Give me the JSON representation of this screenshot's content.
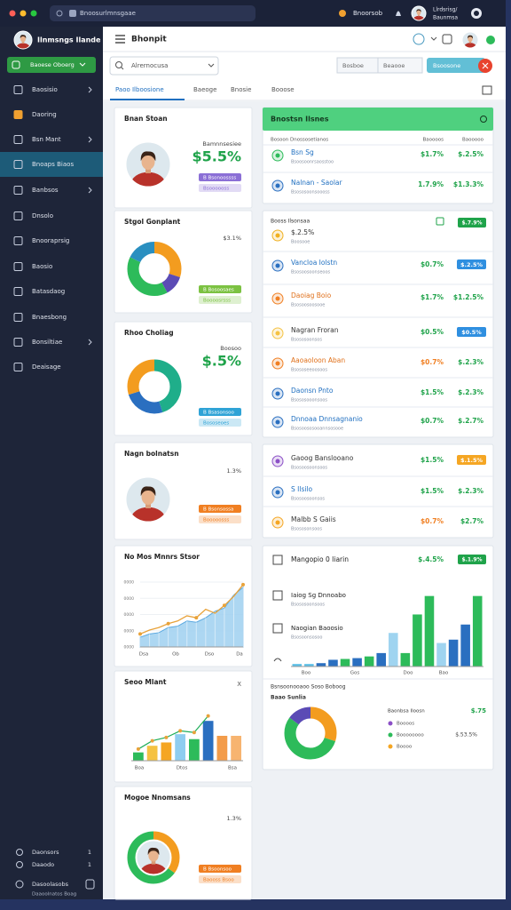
{
  "browser": {
    "url": "Bnoosurlmnsgaae",
    "account": "Bnoorsob",
    "user": [
      "Llrdsrisg/",
      "Baunmsa"
    ]
  },
  "sidebar": {
    "profile": "Ilnmsngs Ilande",
    "button": "Baoese Oboerg",
    "items": [
      {
        "label": "Baosisio",
        "arrow": true
      },
      {
        "label": "Daoring",
        "color": "#f0a030"
      },
      {
        "label": "Bsn Mant",
        "arrow": true
      },
      {
        "label": "Bnoaps Biaos",
        "active": true
      },
      {
        "label": "Banbsos",
        "arrow": true
      },
      {
        "label": "Dnsolo"
      },
      {
        "label": "Bnooraprsig"
      },
      {
        "label": "Baosio"
      },
      {
        "label": "Batasdaog"
      },
      {
        "label": "Bnaesbong"
      },
      {
        "label": "Bonsiltiae",
        "arrow": true
      },
      {
        "label": "Deaisage"
      }
    ],
    "footer": [
      {
        "label": "Daonsors",
        "count": "1"
      },
      {
        "label": "Daaodo",
        "count": "1"
      }
    ],
    "account": {
      "name": "Dasoolasobs",
      "sub": "Daaoolnatos Boag"
    }
  },
  "header": {
    "title": "Bhonpit",
    "search": "Alrernocusa",
    "filters": [
      "Bosboe",
      "Beaooe"
    ],
    "action": "Bsoosone",
    "tabs": [
      "Paoo Ilboosione",
      "Baeoge",
      "Bnosie",
      "Booose"
    ]
  },
  "left_cards": [
    {
      "kind": "profile",
      "title": "Bnan Stoan",
      "label": "Bamnnsesiee",
      "value": "$5.5%",
      "value_color": "#1fa34a",
      "pill": "B Bsonoossss",
      "pill_color": "#8b6fd6",
      "pill2": "Bsoooooss"
    },
    {
      "kind": "donut",
      "title": "Stgol Gonplant",
      "label": "$3.1%",
      "pill": "B Bosoosaes",
      "pill_color": "#7cc242",
      "pill2": "Boooosrsss",
      "segments": [
        {
          "value": 30,
          "color": "#f39c1f"
        },
        {
          "value": 12,
          "color": "#5b4bb5"
        },
        {
          "value": 40,
          "color": "#2dbb5a"
        },
        {
          "value": 18,
          "color": "#2a8fc0"
        }
      ]
    },
    {
      "kind": "donut",
      "title": "Rhoo Choliag",
      "label": "Boosoo",
      "value": "$.5%",
      "value_color": "#1fa34a",
      "pill": "B Bsasonsoo",
      "pill_color": "#2fa3d6",
      "pill2": "Bososeoes",
      "segments": [
        {
          "value": 45,
          "color": "#1fae8a"
        },
        {
          "value": 25,
          "color": "#2a6fc0"
        },
        {
          "value": 30,
          "color": "#f39c1f"
        }
      ]
    },
    {
      "kind": "profile",
      "title": "Nagn bolnatsn",
      "label": "1.3%",
      "pill": "B Bsonsossa",
      "pill_color": "#f07f22",
      "pill2": "Booooosss"
    },
    {
      "kind": "area",
      "title": "No Mos Mnnrs Stsor",
      "ylabels": [
        "0000",
        "0000",
        "0000",
        "0000",
        "0000"
      ],
      "xlabels": [
        "Dsa",
        "Ob",
        "Dso",
        "Da"
      ],
      "ylim": [
        0,
        100
      ],
      "values": [
        15,
        20,
        22,
        30,
        32,
        40,
        38,
        45,
        55,
        60,
        80,
        92
      ],
      "line": [
        20,
        26,
        30,
        36,
        40,
        48,
        45,
        58,
        52,
        64,
        78,
        96
      ]
    },
    {
      "kind": "bars",
      "title": "Seoo Mlant",
      "close": "X",
      "xlabels": [
        "Boa",
        "Dtos",
        "Bsa"
      ],
      "ylim": [
        0,
        60
      ],
      "bars": [
        {
          "value": 10,
          "color": "#2dbb5a"
        },
        {
          "value": 18,
          "color": "#f5c242"
        },
        {
          "value": 22,
          "color": "#f5a623"
        },
        {
          "value": 32,
          "color": "#8fcdf0"
        },
        {
          "value": 26,
          "color": "#2dbb5a"
        },
        {
          "value": 48,
          "color": "#2a6fc0"
        },
        {
          "value": 30,
          "color": "#f39c4a"
        },
        {
          "value": 30,
          "color": "#f7b470"
        }
      ],
      "line": [
        14,
        24,
        28,
        36,
        34,
        54,
        null,
        null
      ]
    },
    {
      "kind": "donut_profile",
      "title": "Mogoe Nnomsans",
      "label": "1.3%",
      "pill": "B Bsoonsoo",
      "pill_color": "#f07f22",
      "pill2": "Baooss Bsoo",
      "segments": [
        {
          "value": 35,
          "color": "#f39c1f"
        },
        {
          "value": 65,
          "color": "#2dbb5a"
        }
      ]
    }
  ],
  "summary": {
    "title": "Bnostsn Ilsnes",
    "columns": [
      "Bosoon Dnossosetianos",
      "Baoooos",
      "Baooooo"
    ],
    "rows": [
      {
        "title": "Bsn Sg",
        "sub": "Bsoosoonrsaosstoo",
        "v1": "$1.7%",
        "v2": "$.2.5%",
        "icon": "#2dbb5a",
        "title_color": "#1f6fc0"
      },
      {
        "title": "Nalnan - Saolar",
        "sub": "Bsososoonsoooss",
        "v1": "1.7.9%",
        "v2": "$1.3.3%",
        "icon": "#2a6fc0",
        "title_color": "#1f6fc0"
      }
    ]
  },
  "list": {
    "title": "Booss Ilsonsaa",
    "pill": "$.7.9%",
    "pill_color": "#1fa34a",
    "rows": [
      {
        "title": "$.2.5%",
        "sub": "Boosooe",
        "icon": "#f0b020",
        "title_color": "#333333"
      },
      {
        "title": "Vancloa Iolstn",
        "sub": "Bsosoosoonseoos",
        "v1": "$0.7%",
        "v2": "$.2.5%",
        "v2_pill": "#2f8fe0",
        "icon": "#2a6fc0",
        "title_color": "#1f6fc0"
      },
      {
        "title": "Daoiag Boio",
        "sub": "Bsosoosoosooe",
        "v1": "$1.7%",
        "v2": "$1.2.5%",
        "icon": "#f07f22",
        "title_color": "#e0701a"
      },
      {
        "title": "Nagran Froran",
        "sub": "Bsososoonsos",
        "v1": "$0.5%",
        "v2": "$0.5%",
        "v2_pill": "#2f8fe0",
        "icon": "#f5c242",
        "title_color": "#333333"
      },
      {
        "title": "Aaoaoloon Aban",
        "sub": "Bsososeeoosoos",
        "v1": "$0.7%",
        "v1_color": "#f07f22",
        "v2": "$.2.3%",
        "icon": "#f07f22",
        "title_color": "#e0701a"
      },
      {
        "title": "Daonsn Pnto",
        "sub": "Bsososooonsoos",
        "v1": "$1.5%",
        "v2": "$.2.3%",
        "icon": "#2a6fc0",
        "title_color": "#1f6fc0"
      },
      {
        "title": "Dnnoaa Dnnsagnanio",
        "sub": "Bsosoososooannsosooe",
        "v1": "$0.7%",
        "v2": "$.2.7%",
        "icon": "#2a6fc0",
        "title_color": "#1f6fc0"
      }
    ]
  },
  "list2": {
    "rows": [
      {
        "title": "Gaoog Banslooano",
        "sub": "Bsosoosoonsoos",
        "v1": "$1.5%",
        "v2": "$.1.5%",
        "v2_pill": "#f5a623",
        "icon": "#8b4fc6",
        "title_color": "#333333"
      },
      {
        "title": "S Ilsilo",
        "sub": "Bsosoosoonsos",
        "v1": "$1.5%",
        "v2": "$.2.3%",
        "icon": "#2a6fc0",
        "title_color": "#1f6fc0"
      },
      {
        "title": "Malbb S Gaiis",
        "sub": "Bsososonsoos",
        "v1": "$0.7%",
        "v1_color": "#f07f22",
        "v2": "$2.7%",
        "icon": "#f5a623",
        "title_color": "#333333"
      }
    ]
  },
  "chart_card": {
    "title": "Mangopio 0 Iiarin",
    "value": "$.4.5%",
    "pill": "$.1.9%",
    "pill_color": "#1fa34a",
    "items": [
      {
        "title": "Iaiog Sg Dnnoabo",
        "sub": "Bsososoonsoos"
      },
      {
        "title": "Naogian Baoosio",
        "sub": "Bsosoonsosoo"
      }
    ],
    "xlabels": [
      "Boo",
      "Gos",
      "Doo",
      "Bao"
    ],
    "ylim": [
      0,
      90
    ],
    "bars": [
      {
        "value": 3,
        "color": "#5bc0e8"
      },
      {
        "value": 3,
        "color": "#5bc0e8"
      },
      {
        "value": 4,
        "color": "#2a6fc0"
      },
      {
        "value": 8,
        "color": "#2a6fc0"
      },
      {
        "value": 9,
        "color": "#2dbb5a"
      },
      {
        "value": 10,
        "color": "#2a6fc0"
      },
      {
        "value": 12,
        "color": "#2dbb5a"
      },
      {
        "value": 16,
        "color": "#2a6fc0"
      },
      {
        "value": 40,
        "color": "#9fd4f0"
      },
      {
        "value": 16,
        "color": "#2dbb5a"
      },
      {
        "value": 62,
        "color": "#2dbb5a"
      },
      {
        "value": 84,
        "color": "#2dbb5a"
      },
      {
        "value": 28,
        "color": "#9fd4f0"
      },
      {
        "value": 32,
        "color": "#2a6fc0"
      },
      {
        "value": 50,
        "color": "#2a6fc0"
      },
      {
        "value": 84,
        "color": "#2dbb5a"
      }
    ],
    "donut_title": "Bsnsoonooaoo Soso Boboog",
    "donut_sub": "Baao Sunlia",
    "segments": [
      {
        "value": 30,
        "color": "#f39c1f"
      },
      {
        "value": 55,
        "color": "#2dbb5a"
      },
      {
        "value": 15,
        "color": "#5b4bb5"
      }
    ],
    "legend_title": "Baonbsa Iloosn",
    "legend_value": "$.75",
    "legend": [
      {
        "label": "Boooos",
        "color": "#8b4fc6"
      },
      {
        "label": "Boooooooo",
        "color": "#2dbb5a",
        "value": "$.53.5%"
      },
      {
        "label": "Boooo",
        "color": "#f5a623"
      }
    ]
  }
}
